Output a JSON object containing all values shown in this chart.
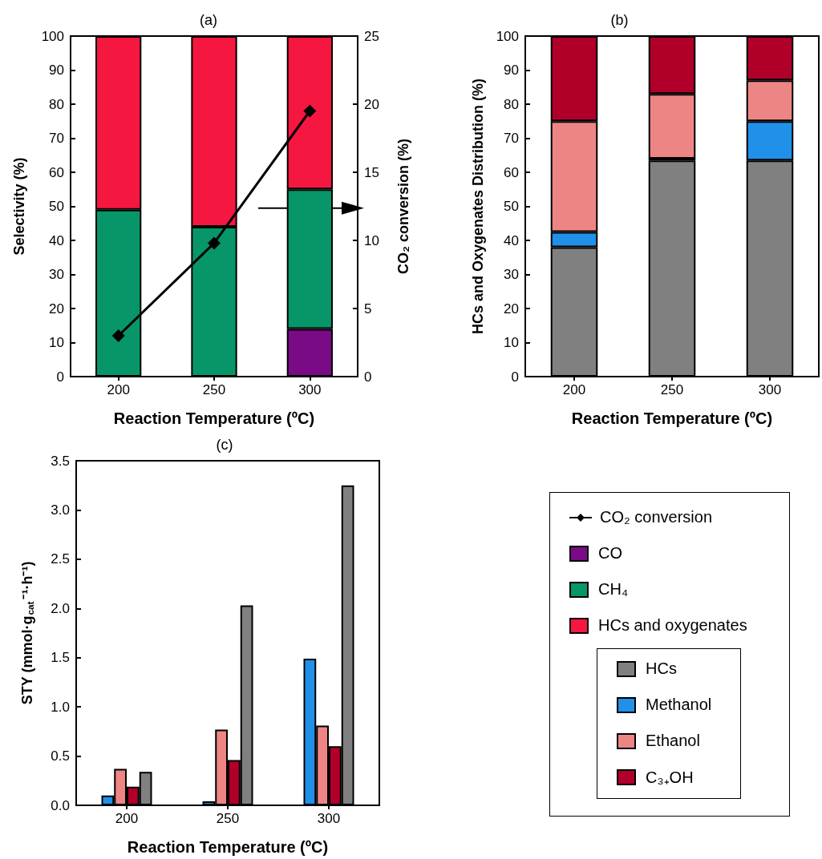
{
  "chart_data": [
    {
      "type": "bar",
      "title": "(a)",
      "xlabel": "Reaction Temperature (ºC)",
      "ylabel": "Selectivity (%)",
      "y2label": "CO₂ conversion (%)",
      "categories": [
        "200",
        "250",
        "300"
      ],
      "stacked": true,
      "ylim": [
        0,
        100
      ],
      "yticks": [
        0,
        10,
        20,
        30,
        40,
        50,
        60,
        70,
        80,
        90,
        100
      ],
      "y2lim": [
        0,
        25
      ],
      "y2ticks": [
        0,
        5,
        10,
        15,
        20,
        25
      ],
      "grid": false,
      "legend": "bottom right",
      "series": [
        {
          "name": "CO₂ conversion",
          "type": "line",
          "axis": "y2",
          "color": "#000000",
          "marker": "diamond",
          "line_style": "solid",
          "values": [
            3.0,
            9.8,
            19.5
          ]
        },
        {
          "name": "CO",
          "color": "#7b0a86",
          "values": [
            0,
            0,
            14
          ]
        },
        {
          "name": "CH₄",
          "color": "#079669",
          "values": [
            49,
            44,
            41
          ]
        },
        {
          "name": "HCs and oxygenates",
          "color": "#f5173f",
          "values": [
            51,
            56,
            45
          ]
        }
      ]
    },
    {
      "type": "bar",
      "title": "(b)",
      "xlabel": "Reaction Temperature (ºC)",
      "ylabel": "HCs and Oxygenates Distribution (%)",
      "categories": [
        "200",
        "250",
        "300"
      ],
      "stacked": true,
      "ylim": [
        0,
        100
      ],
      "yticks": [
        0,
        10,
        20,
        30,
        40,
        50,
        60,
        70,
        80,
        90,
        100
      ],
      "grid": false,
      "legend": "bottom right",
      "series": [
        {
          "name": "HCs",
          "color": "#808080",
          "values": [
            38,
            63.5,
            63.5
          ]
        },
        {
          "name": "Methanol",
          "color": "#2090e8",
          "values": [
            4.5,
            0.5,
            11.5
          ]
        },
        {
          "name": "Ethanol",
          "color": "#ee8585",
          "values": [
            32.5,
            19,
            12
          ]
        },
        {
          "name": "C₃₊OH",
          "color": "#b0002a",
          "values": [
            25,
            17,
            13
          ]
        }
      ]
    },
    {
      "type": "bar",
      "title": "(c)",
      "xlabel": "Reaction Temperature (ºC)",
      "ylabel": "STY (mmol·g$_{cat}$⁻¹·h⁻¹)",
      "categories": [
        "200",
        "250",
        "300"
      ],
      "ylim": [
        0,
        3.5
      ],
      "yticks": [
        {
          "value": 0,
          "label": "0.0"
        },
        {
          "value": 0.5,
          "label": "0.5"
        },
        {
          "value": 1,
          "label": "1.0"
        },
        {
          "value": 1.5,
          "label": "1.5"
        },
        {
          "value": 2,
          "label": "2.0"
        },
        {
          "value": 2.5,
          "label": "2.5"
        },
        {
          "value": 3,
          "label": "3.0"
        },
        {
          "value": 3.5,
          "label": "3.5"
        }
      ],
      "grid": false,
      "series": [
        {
          "color": "#2090e8",
          "values": [
            0.1,
            0.04,
            1.49
          ]
        },
        {
          "color": "#ee8585",
          "values": [
            0.37,
            0.77,
            0.81
          ]
        },
        {
          "color": "#b0002a",
          "values": [
            0.19,
            0.46,
            0.6
          ]
        },
        {
          "color": "#808080",
          "values": [
            0.34,
            2.03,
            3.25
          ]
        }
      ]
    }
  ]
}
